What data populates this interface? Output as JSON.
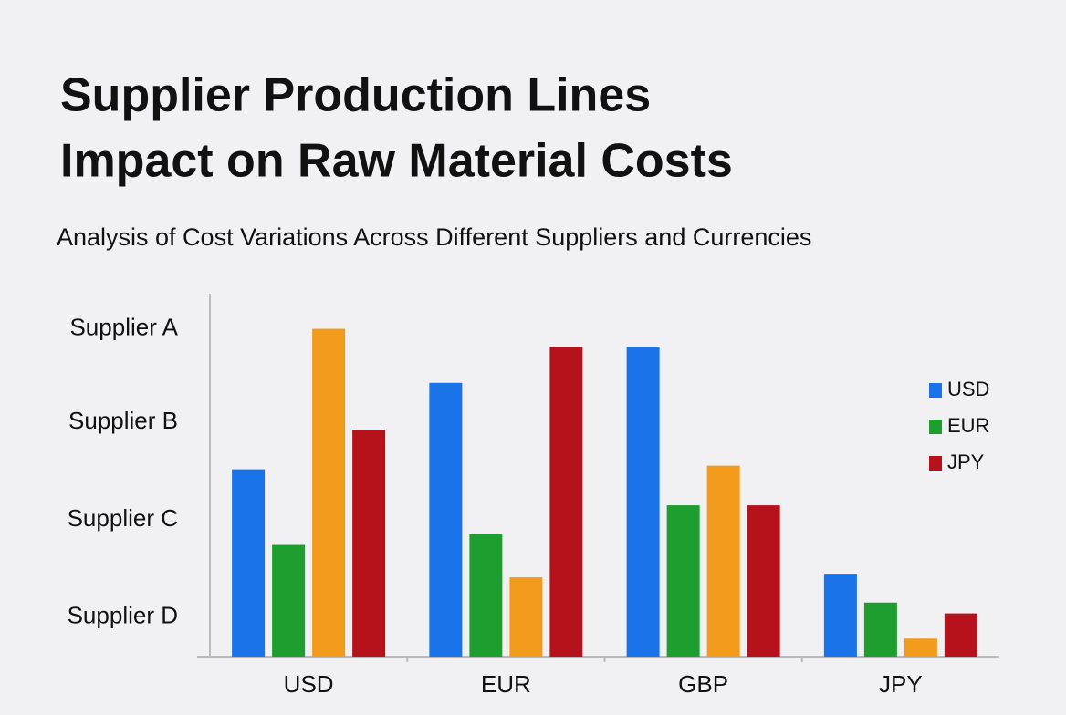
{
  "chart_data": {
    "type": "bar",
    "title": [
      "Supplier Production Lines",
      "Impact on Raw Material Costs"
    ],
    "subtitle": "Analysis of Cost Variations Across Different Suppliers and Currencies",
    "categories": [
      "USD",
      "EUR",
      "GBP",
      "JPY"
    ],
    "series": [
      {
        "name": "USD",
        "color": "#1a73e8",
        "values": [
          52,
          76,
          86,
          23
        ]
      },
      {
        "name": "EUR",
        "color": "#1e9e2e",
        "values": [
          31,
          34,
          42,
          15
        ]
      },
      {
        "color": "#f29a1c",
        "values": [
          91,
          22,
          53,
          5
        ]
      },
      {
        "name": "JPY",
        "color": "#b5121b",
        "values": [
          63,
          86,
          42,
          12
        ]
      }
    ],
    "ylim": [
      0,
      100
    ],
    "yticks": [
      {
        "value": 11,
        "label": "Supplier D"
      },
      {
        "value": 38,
        "label": "Supplier C"
      },
      {
        "value": 65,
        "label": "Supplier B"
      },
      {
        "value": 91,
        "label": "Supplier A"
      }
    ],
    "grid": false,
    "legend": "right"
  }
}
